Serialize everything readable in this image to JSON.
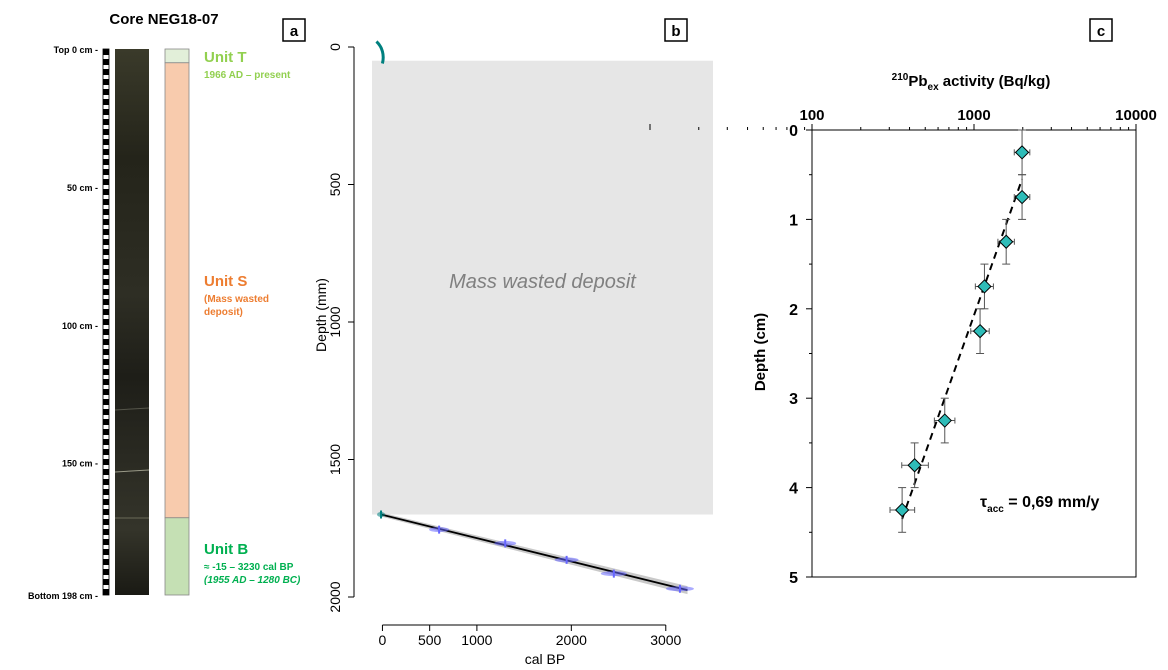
{
  "panel_a": {
    "title": "Core NEG18-07",
    "letter": "a",
    "depth_labels": [
      "Top 0 cm -",
      "50 cm -",
      "100 cm -",
      "150 cm -",
      "Bottom 198 cm -"
    ],
    "depth_values_cm": [
      0,
      50,
      100,
      150,
      198
    ],
    "units": [
      {
        "name": "Unit T",
        "lines": [
          "1966 AD – present"
        ],
        "top_cm": 0,
        "bottom_cm": 5,
        "fill": "#e2efd9",
        "label_color": "#92d050"
      },
      {
        "name": "Unit S",
        "lines": [
          "(Mass wasted",
          "deposit)"
        ],
        "top_cm": 5,
        "bottom_cm": 170,
        "fill": "#f8cbad",
        "label_color": "#ed7d31"
      },
      {
        "name": "Unit B",
        "lines": [
          "≈ -15 – 3230 cal BP",
          "(1955 AD – 1280 BC)"
        ],
        "top_cm": 170,
        "bottom_cm": 198,
        "fill": "#c5e0b4",
        "label_color": "#00b050"
      }
    ]
  },
  "panel_b": {
    "letter": "b",
    "shaded_label": "Mass wasted deposit",
    "shaded_range_mm": [
      50,
      1700
    ],
    "colors": {
      "shade": "#e6e6e6",
      "dates": "#6666ff",
      "top_date": "#00807f",
      "model": "#000000"
    }
  },
  "panel_c": {
    "letter": "c",
    "title_prefix": "210",
    "title_main": "Pb",
    "title_sub": "ex",
    "title_suffix": " activity (Bq/kg)",
    "annotation_main": "τ",
    "annotation_sub": "acc",
    "annotation_rest": " = 0,69 mm/y",
    "marker_color": "#2ebcb8"
  },
  "chart_data": [
    {
      "type": "line",
      "title": "",
      "xlabel": "cal BP",
      "ylabel": "Depth (mm)",
      "xlim": [
        -100,
        3500
      ],
      "ylim": [
        2150,
        -100
      ],
      "x_ticks": [
        0,
        500,
        1000,
        2000,
        3000
      ],
      "x_tick_labels": [
        "0",
        "500",
        "1000",
        "2000",
        "3000"
      ],
      "y_ticks": [
        0,
        500,
        1000,
        1500,
        2000
      ],
      "y_tick_labels": [
        "0",
        "500",
        "1000",
        "1500",
        "2000"
      ],
      "series": [
        {
          "x": [
            -15,
            3230
          ],
          "y": [
            1700,
            1975
          ]
        }
      ],
      "dated_points": [
        {
          "x": -15,
          "y": 1700
        },
        {
          "x": 600,
          "y": 1755
        },
        {
          "x": 1300,
          "y": 1805
        },
        {
          "x": 1950,
          "y": 1865
        },
        {
          "x": 2450,
          "y": 1915
        },
        {
          "x": 3150,
          "y": 1970
        }
      ],
      "top_marker": {
        "x": 0,
        "y": 15
      }
    },
    {
      "type": "scatter",
      "title": "",
      "xlabel": "",
      "ylabel": "Depth (cm)",
      "x_scale": "log",
      "xlim": [
        100,
        10000
      ],
      "ylim": [
        5,
        0
      ],
      "x_ticks": [
        100,
        1000,
        10000
      ],
      "x_tick_labels": [
        "100",
        "1000",
        "10000"
      ],
      "y_ticks": [
        0,
        1,
        2,
        3,
        4,
        5
      ],
      "y_tick_labels": [
        "0",
        "1",
        "2",
        "3",
        "4",
        "5"
      ],
      "points": [
        {
          "x": 1980,
          "y": 0.25,
          "yerr": 0.25,
          "xerr_low": 1930,
          "xerr_high": 2030
        },
        {
          "x": 1980,
          "y": 0.75,
          "yerr": 0.25,
          "xerr_low": 1930,
          "xerr_high": 2030
        },
        {
          "x": 1580,
          "y": 1.25,
          "yerr": 0.25,
          "xerr_low": 1530,
          "xerr_high": 1630
        },
        {
          "x": 1160,
          "y": 1.75,
          "yerr": 0.25,
          "xerr_low": 1110,
          "xerr_high": 1210
        },
        {
          "x": 1090,
          "y": 2.25,
          "yerr": 0.25,
          "xerr_low": 1040,
          "xerr_high": 1140
        },
        {
          "x": 660,
          "y": 3.25,
          "yerr": 0.25,
          "xerr_low": 620,
          "xerr_high": 700
        },
        {
          "x": 430,
          "y": 3.75,
          "yerr": 0.25,
          "xerr_low": 390,
          "xerr_high": 480
        },
        {
          "x": 360,
          "y": 4.25,
          "yerr": 0.25,
          "xerr_low": 330,
          "xerr_high": 395
        }
      ],
      "fit_line": {
        "x": [
          360,
          1980
        ],
        "y": [
          4.35,
          0.55
        ]
      }
    }
  ]
}
